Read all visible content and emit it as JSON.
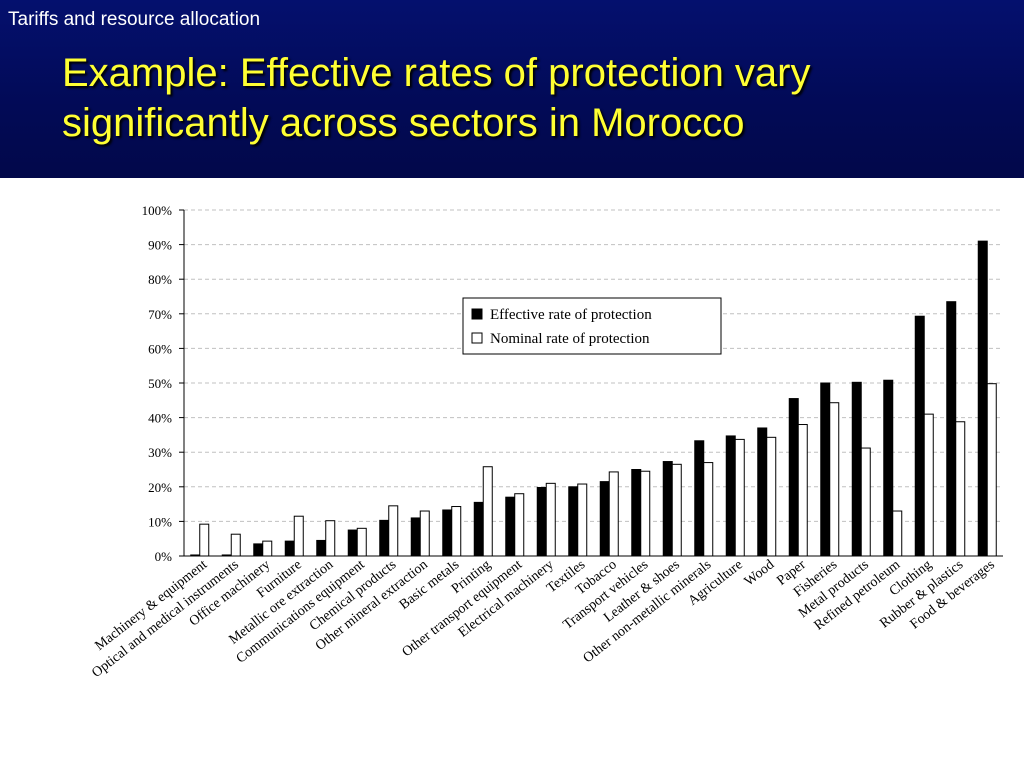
{
  "header": {
    "section": "Tariffs and resource allocation",
    "title": "Example: Effective rates of protection vary significantly across sectors in Morocco"
  },
  "colors": {
    "header_bg": "#030c5e",
    "title": "#ffff33",
    "effective_bar": "#000000",
    "nominal_bar": "#ffffff"
  },
  "chart_data": {
    "type": "bar",
    "categories": [
      "Machinery & equipment",
      "Optical and medical instruments",
      "Office machinery",
      "Furniture",
      "Metallic ore extraction",
      "Communications equipment",
      "Chemical products",
      "Other mineral extraction",
      "Basic metals",
      "Printing",
      "Other transport equipment",
      "Electrical machinery",
      "Textiles",
      "Tobacco",
      "Transport vehicles",
      "Leather & shoes",
      "Other non-metallic minerals",
      "Agriculture",
      "Wood",
      "Paper",
      "Fisheries",
      "Metal products",
      "Refined petroleum",
      "Clothing",
      "Rubber & plastics",
      "Food & beverages"
    ],
    "series": [
      {
        "name": "Effective rate of protection",
        "values": [
          0.3,
          0.3,
          3.5,
          4.3,
          4.5,
          7.5,
          10.3,
          11,
          13.3,
          15.5,
          17,
          19.8,
          20,
          21.5,
          25,
          27.3,
          33.3,
          34.7,
          37,
          45.5,
          50,
          50.2,
          50.8,
          69.3,
          73.5,
          91
        ]
      },
      {
        "name": "Nominal rate of protection",
        "values": [
          9.2,
          6.3,
          4.3,
          11.5,
          10.2,
          8,
          14.5,
          13,
          14.3,
          25.8,
          18,
          21,
          20.8,
          24.3,
          24.5,
          26.5,
          27,
          33.7,
          34.3,
          38,
          44.3,
          31.2,
          13,
          41,
          38.8,
          49.8
        ]
      }
    ],
    "yticks": [
      "0%",
      "10%",
      "20%",
      "30%",
      "40%",
      "50%",
      "60%",
      "70%",
      "80%",
      "90%",
      "100%"
    ],
    "ylim": [
      0,
      100
    ],
    "grid": true,
    "legend": "upper-center"
  }
}
